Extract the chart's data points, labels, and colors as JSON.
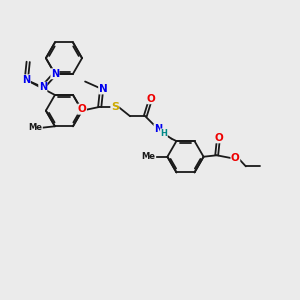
{
  "background_color": "#ebebeb",
  "bond_color": "#1a1a1a",
  "bond_width": 1.3,
  "atom_colors": {
    "N": "#0000ee",
    "O": "#ee0000",
    "S": "#ccaa00",
    "H": "#008888"
  },
  "font_size": 7.5
}
